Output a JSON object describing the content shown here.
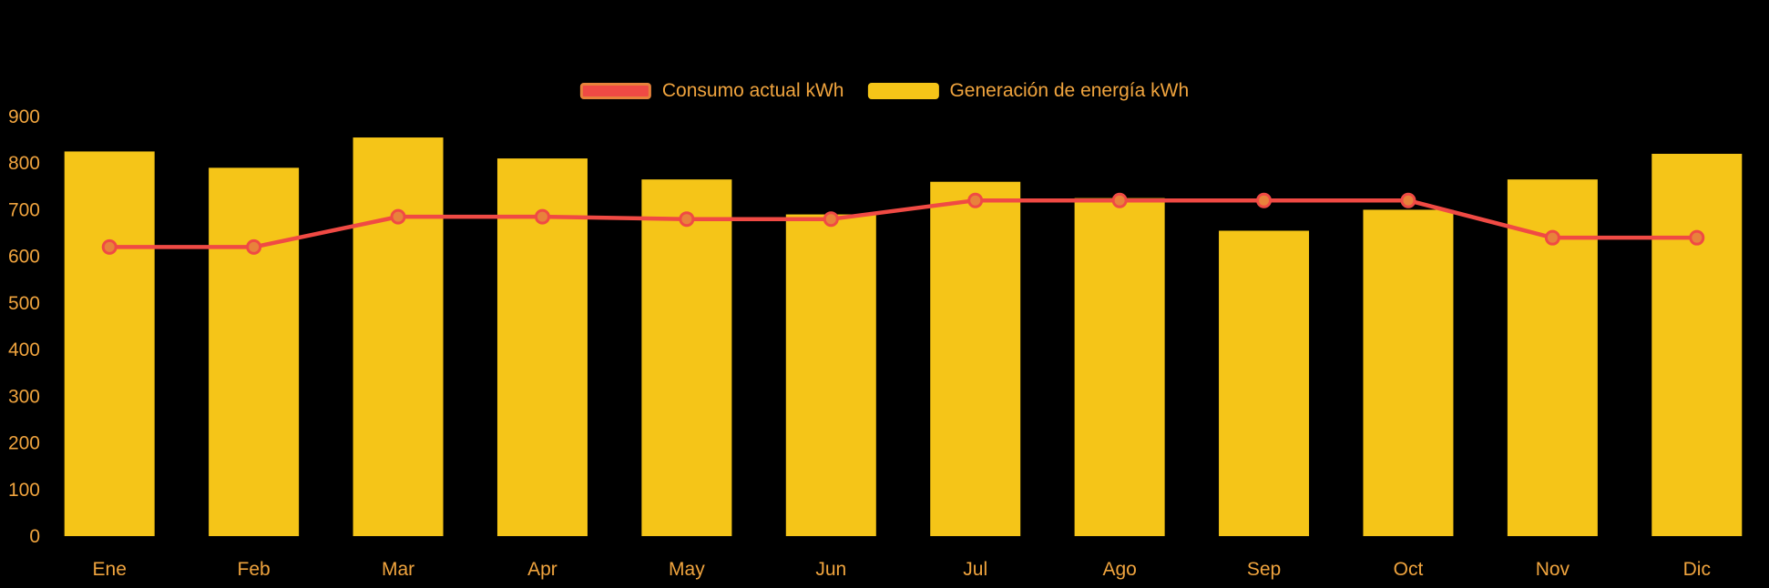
{
  "chart_data": {
    "type": "combo",
    "title": "",
    "xlabel": "",
    "ylabel": "",
    "categories": [
      "Ene",
      "Feb",
      "Mar",
      "Apr",
      "May",
      "Jun",
      "Jul",
      "Ago",
      "Sep",
      "Oct",
      "Nov",
      "Dic"
    ],
    "series": [
      {
        "name": "Consumo actual kWh",
        "type": "line",
        "color": "#F04A44",
        "marker_fill": "#E8823B",
        "values": [
          620,
          620,
          685,
          685,
          680,
          680,
          720,
          720,
          720,
          720,
          640,
          640
        ]
      },
      {
        "name": "Generación de energía kWh",
        "type": "bar",
        "color": "#F5C518",
        "values": [
          825,
          790,
          855,
          810,
          765,
          690,
          760,
          725,
          655,
          700,
          765,
          820
        ]
      }
    ],
    "ylim": [
      0,
      900
    ],
    "ytick_step": 100,
    "yticks": [
      0,
      100,
      200,
      300,
      400,
      500,
      600,
      700,
      800,
      900
    ],
    "grid": false,
    "legend_position": "top-center",
    "axis_text_color": "#F0A43E",
    "background_color": "#000000"
  },
  "legend": {
    "items": [
      {
        "label": "Consumo actual kWh"
      },
      {
        "label": "Generación de energía kWh"
      }
    ]
  }
}
